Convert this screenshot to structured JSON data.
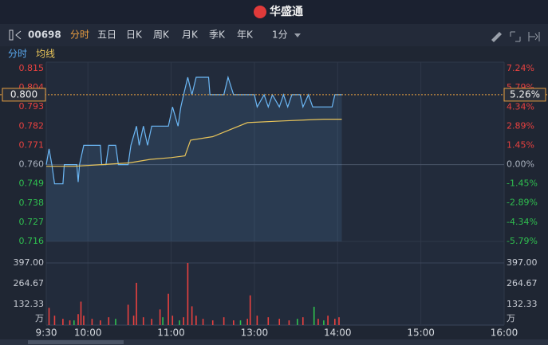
{
  "header": {
    "logo": "华盛通"
  },
  "toolbar": {
    "symbol": "00698",
    "tabs": [
      "分时",
      "五日",
      "日K",
      "周K",
      "月K",
      "季K",
      "年K"
    ],
    "interval": "1分"
  },
  "subtabs": [
    "分时",
    "均线"
  ],
  "chart_data": [
    {
      "type": "line",
      "xlim": [
        0,
        330
      ],
      "ylim": [
        0.716,
        0.815
      ],
      "yticks": [
        0.815,
        0.804,
        0.793,
        0.782,
        0.771,
        {
          "value": 0.76,
          "label": "0.760"
        },
        0.749,
        0.738,
        0.727,
        0.716
      ],
      "y2lim": [
        -5.79,
        7.24
      ],
      "y2ticks": [
        {
          "value": 7.24,
          "label": "7.24%"
        },
        {
          "value": 5.79,
          "label": "5.79%"
        },
        {
          "value": 4.34,
          "label": "4.34%"
        },
        {
          "value": 2.89,
          "label": "2.89%"
        },
        {
          "value": 1.45,
          "label": "1.45%"
        },
        {
          "value": 0,
          "label": "0.00%"
        },
        {
          "value": -1.45,
          "label": "-1.45%"
        },
        {
          "value": -2.89,
          "label": "-2.89%"
        },
        {
          "value": -4.34,
          "label": "-4.34%"
        },
        {
          "value": -5.79,
          "label": "-5.79%"
        }
      ],
      "last": {
        "value": 0.8,
        "label": "0.800"
      },
      "last_change": {
        "value": 5.26,
        "label": "5.26%"
      },
      "series": [
        {
          "color": "#6cb8f6",
          "x": [
            0,
            2,
            4,
            6,
            12,
            13,
            22,
            23,
            24,
            27,
            39,
            40,
            43,
            45,
            50,
            52,
            59,
            61,
            65,
            67,
            70,
            73,
            76,
            88,
            91,
            95,
            97,
            99,
            102,
            105,
            108,
            117,
            118,
            128,
            131,
            135,
            150,
            152,
            157,
            160,
            163,
            168,
            171,
            174,
            177,
            183,
            185,
            189,
            192,
            206,
            208,
            213
          ],
          "values": [
            0.76,
            0.769,
            0.76,
            0.749,
            0.749,
            0.76,
            0.76,
            0.75,
            0.76,
            0.771,
            0.771,
            0.76,
            0.76,
            0.771,
            0.771,
            0.76,
            0.76,
            0.771,
            0.782,
            0.771,
            0.782,
            0.771,
            0.782,
            0.782,
            0.793,
            0.782,
            0.793,
            0.8,
            0.81,
            0.8,
            0.81,
            0.81,
            0.8,
            0.8,
            0.81,
            0.8,
            0.8,
            0.793,
            0.8,
            0.793,
            0.8,
            0.793,
            0.8,
            0.793,
            0.8,
            0.8,
            0.793,
            0.8,
            0.793,
            0.793,
            0.8,
            0.8
          ]
        },
        {
          "color": "#e8c45a",
          "x": [
            0,
            20,
            40,
            60,
            75,
            90,
            100,
            104,
            120,
            145,
            170,
            200,
            213
          ],
          "values": [
            0.759,
            0.759,
            0.76,
            0.761,
            0.763,
            0.764,
            0.765,
            0.774,
            0.776,
            0.784,
            0.785,
            0.786,
            0.786
          ]
        }
      ]
    },
    {
      "type": "bar",
      "unit": "万",
      "xlim": [
        0,
        330
      ],
      "xticks": [
        {
          "value": 0,
          "label": "9:30"
        },
        {
          "value": 30,
          "label": "10:00"
        },
        {
          "value": 90,
          "label": "11:00"
        },
        {
          "value": 150,
          "label": "13:00"
        },
        {
          "value": 210,
          "label": "14:00"
        },
        {
          "value": 270,
          "label": "15:00"
        },
        {
          "value": 330,
          "label": "16:00"
        }
      ],
      "ylim": [
        0,
        397
      ],
      "yticks": [
        {
          "value": 397,
          "label": "397.00"
        },
        264.67,
        132.33
      ],
      "series": [
        {
          "color": "#e8413f",
          "x": [
            2,
            6,
            12,
            17,
            23,
            25,
            27,
            33,
            39,
            45,
            59,
            63,
            65,
            70,
            76,
            82,
            88,
            91,
            99,
            102,
            105,
            108,
            113,
            120,
            128,
            135,
            145,
            147,
            152,
            160,
            168,
            175,
            185,
            196,
            203,
            208,
            211
          ],
          "values": [
            110,
            60,
            40,
            30,
            70,
            150,
            60,
            40,
            30,
            50,
            130,
            60,
            270,
            50,
            40,
            100,
            200,
            60,
            50,
            397,
            120,
            60,
            40,
            30,
            50,
            30,
            40,
            190,
            60,
            50,
            40,
            30,
            50,
            40,
            60,
            40,
            50
          ]
        },
        {
          "color": "#2fbf4f",
          "x": [
            20,
            50,
            84,
            96,
            140,
            181,
            193,
            200
          ],
          "values": [
            30,
            40,
            50,
            30,
            30,
            40,
            117,
            30
          ]
        }
      ]
    }
  ]
}
